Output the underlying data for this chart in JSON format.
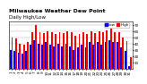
{
  "title": "Milwaukee Weather Dew Point",
  "subtitle": "Daily High/Low",
  "bar_high_color": "#ff0000",
  "bar_low_color": "#0000ff",
  "background_color": "#ffffff",
  "plot_bg_color": "#ffffff",
  "ylim": [
    0,
    75
  ],
  "yticks": [
    10,
    20,
    30,
    40,
    50,
    60,
    70
  ],
  "ytick_labels": [
    "10",
    "20",
    "30",
    "40",
    "50",
    "60",
    "70"
  ],
  "n_days": 31,
  "high_values": [
    50,
    48,
    40,
    38,
    42,
    58,
    70,
    58,
    57,
    60,
    58,
    56,
    58,
    57,
    60,
    58,
    52,
    56,
    58,
    56,
    60,
    57,
    60,
    58,
    62,
    64,
    58,
    58,
    50,
    44,
    18
  ],
  "low_values": [
    30,
    28,
    26,
    24,
    28,
    38,
    46,
    40,
    38,
    42,
    38,
    36,
    40,
    36,
    40,
    36,
    30,
    34,
    38,
    34,
    42,
    38,
    42,
    38,
    42,
    46,
    42,
    42,
    34,
    28,
    4
  ],
  "x_labels": [
    "1",
    "2",
    "3",
    "4",
    "5",
    "6",
    "7",
    "8",
    "9",
    "10",
    "11",
    "12",
    "13",
    "14",
    "15",
    "16",
    "17",
    "18",
    "19",
    "20",
    "21",
    "22",
    "23",
    "24",
    "25",
    "26",
    "27",
    "28",
    "29",
    "30",
    "31"
  ],
  "legend_high": "High",
  "legend_low": "Low",
  "title_fontsize": 4.5,
  "tick_fontsize": 3.0,
  "legend_fontsize": 3.0
}
